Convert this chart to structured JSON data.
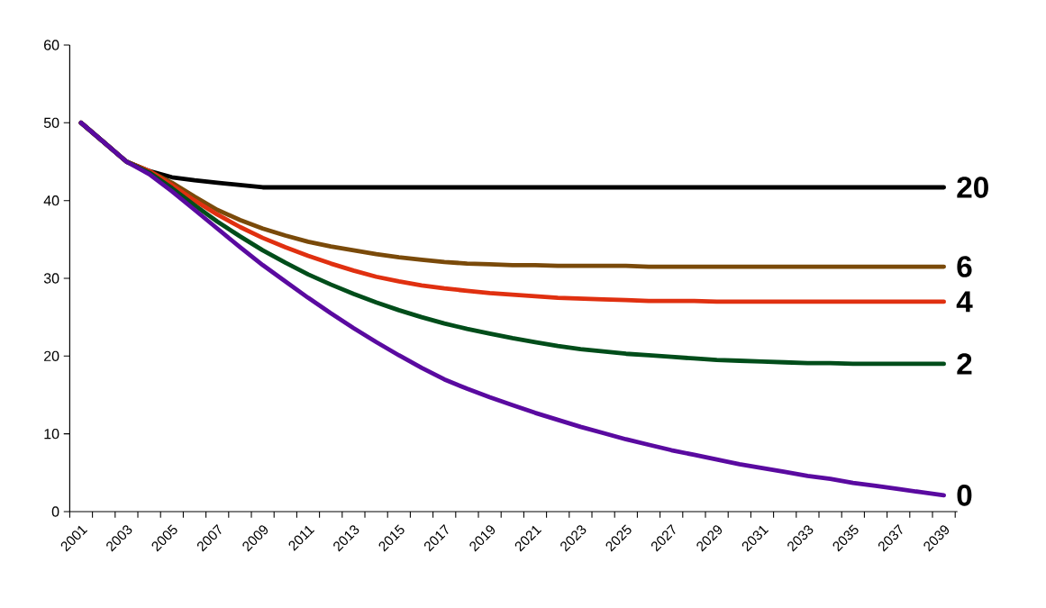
{
  "chart_data": {
    "type": "line",
    "categories": [
      "2001",
      null,
      "2003",
      null,
      "2005",
      null,
      "2007",
      null,
      "2009",
      null,
      "2011",
      null,
      "2013",
      null,
      "2015",
      null,
      "2017",
      null,
      "2019",
      null,
      "2021",
      null,
      "2023",
      null,
      "2025",
      null,
      "2027",
      null,
      "2029",
      null,
      "2031",
      null,
      "2033",
      null,
      "2035",
      null,
      "2037",
      null,
      "2039"
    ],
    "ylim": [
      0,
      60
    ],
    "yticks": [
      0,
      10,
      20,
      30,
      40,
      50,
      60
    ],
    "grid": false,
    "legend": false,
    "marker": "none",
    "line_style": "solid",
    "series": [
      {
        "name": "20",
        "color": "#000000",
        "values": [
          50,
          47.5,
          45,
          43.8,
          43,
          42.6,
          42.3,
          42,
          41.7,
          41.7,
          41.7,
          41.7,
          41.7,
          41.7,
          41.7,
          41.7,
          41.7,
          41.7,
          41.7,
          41.7,
          41.7,
          41.7,
          41.7,
          41.7,
          41.7,
          41.7,
          41.7,
          41.7,
          41.7,
          41.7,
          41.7,
          41.7,
          41.7,
          41.7,
          41.7,
          41.7,
          41.7,
          41.7,
          41.7
        ]
      },
      {
        "name": "6",
        "color": "#7a4a0a",
        "values": [
          50,
          47.5,
          45,
          43.8,
          42.3,
          40.5,
          38.8,
          37.5,
          36.4,
          35.5,
          34.7,
          34.1,
          33.6,
          33.1,
          32.7,
          32.4,
          32.1,
          31.9,
          31.8,
          31.7,
          31.7,
          31.6,
          31.6,
          31.6,
          31.6,
          31.5,
          31.5,
          31.5,
          31.5,
          31.5,
          31.5,
          31.5,
          31.5,
          31.5,
          31.5,
          31.5,
          31.5,
          31.5,
          31.5
        ]
      },
      {
        "name": "4",
        "color": "#e03010",
        "values": [
          50,
          47.5,
          45,
          43.8,
          42,
          40,
          38.2,
          36.6,
          35.2,
          34,
          32.9,
          31.9,
          31,
          30.2,
          29.6,
          29.1,
          28.7,
          28.4,
          28.1,
          27.9,
          27.7,
          27.5,
          27.4,
          27.3,
          27.2,
          27.1,
          27.1,
          27.1,
          27,
          27,
          27,
          27,
          27,
          27,
          27,
          27,
          27,
          27,
          27
        ]
      },
      {
        "name": "2",
        "color": "#004d1a",
        "values": [
          50,
          47.5,
          45,
          43.6,
          41.6,
          39.4,
          37.3,
          35.4,
          33.6,
          32,
          30.5,
          29.2,
          28,
          26.9,
          25.9,
          25,
          24.2,
          23.5,
          22.9,
          22.3,
          21.8,
          21.3,
          20.9,
          20.6,
          20.3,
          20.1,
          19.9,
          19.7,
          19.5,
          19.4,
          19.3,
          19.2,
          19.1,
          19.1,
          19,
          19,
          19,
          19,
          19
        ]
      },
      {
        "name": "0",
        "color": "#5a0aa0",
        "values": [
          50,
          47.5,
          45,
          43.4,
          41.2,
          38.8,
          36.4,
          34,
          31.7,
          29.6,
          27.5,
          25.5,
          23.6,
          21.8,
          20.1,
          18.5,
          17,
          15.8,
          14.7,
          13.7,
          12.7,
          11.8,
          10.9,
          10.1,
          9.3,
          8.6,
          7.9,
          7.3,
          6.7,
          6.1,
          5.6,
          5.1,
          4.6,
          4.2,
          3.7,
          3.3,
          2.9,
          2.5,
          2.1
        ]
      }
    ]
  }
}
